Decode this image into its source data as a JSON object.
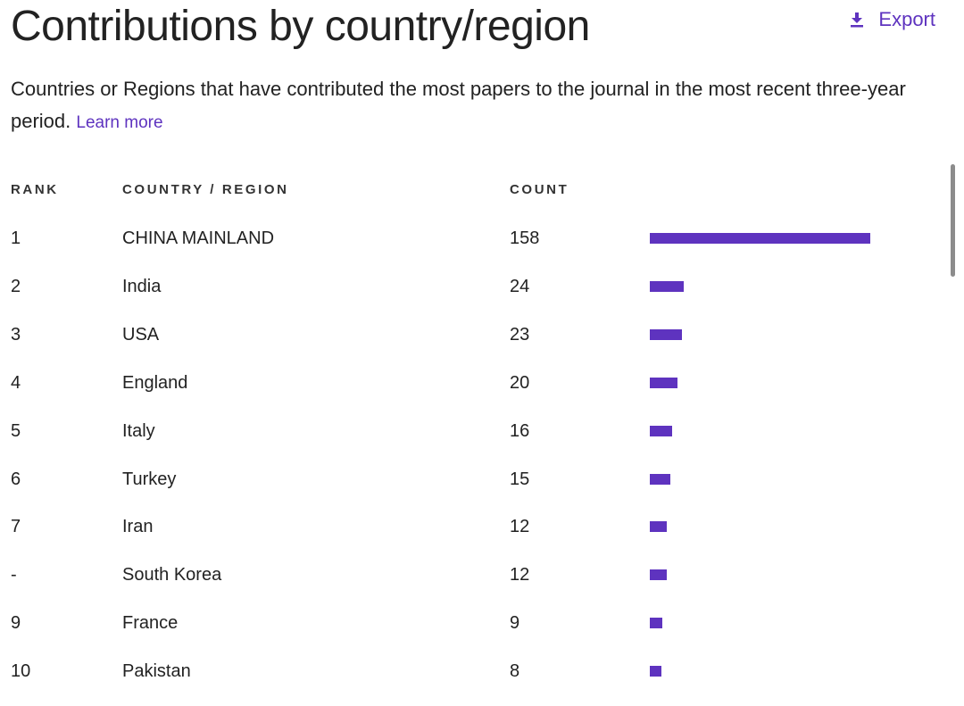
{
  "title": "Contributions by country/region",
  "export": {
    "label": "Export",
    "icon": "download-icon"
  },
  "description": {
    "text": "Countries or Regions that have contributed the most papers to the journal in the most recent three-year period.",
    "learn_more": "Learn more"
  },
  "colors": {
    "accent": "#5e33bf",
    "text": "#222222"
  },
  "table": {
    "headers": {
      "rank": "RANK",
      "country": "COUNTRY / REGION",
      "count": "COUNT"
    },
    "max_count": 158,
    "rows": [
      {
        "rank": "1",
        "country": "CHINA MAINLAND",
        "count": "158",
        "value": 158
      },
      {
        "rank": "2",
        "country": "India",
        "count": "24",
        "value": 24
      },
      {
        "rank": "3",
        "country": "USA",
        "count": "23",
        "value": 23
      },
      {
        "rank": "4",
        "country": "England",
        "count": "20",
        "value": 20
      },
      {
        "rank": "5",
        "country": "Italy",
        "count": "16",
        "value": 16
      },
      {
        "rank": "6",
        "country": "Turkey",
        "count": "15",
        "value": 15
      },
      {
        "rank": "7",
        "country": "Iran",
        "count": "12",
        "value": 12
      },
      {
        "rank": "-",
        "country": "South Korea",
        "count": "12",
        "value": 12
      },
      {
        "rank": "9",
        "country": "France",
        "count": "9",
        "value": 9
      },
      {
        "rank": "10",
        "country": "Pakistan",
        "count": "8",
        "value": 8
      }
    ]
  }
}
